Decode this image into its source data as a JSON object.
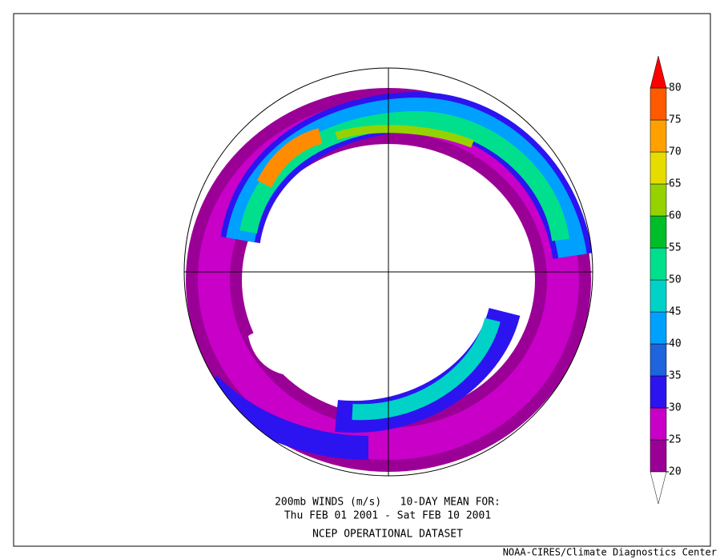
{
  "caption": {
    "line1": "200mb WINDS (m/s)   10-DAY MEAN FOR:",
    "line2": "Thu FEB 01 2001 - Sat FEB 10 2001",
    "line3": "NCEP OPERATIONAL DATASET"
  },
  "credit": "NOAA-CIRES/Climate Diagnostics Center",
  "colorbar": {
    "levels": [
      20,
      25,
      30,
      35,
      40,
      45,
      50,
      55,
      60,
      65,
      70,
      75,
      80
    ],
    "colors": [
      "#9b0096",
      "#c800c8",
      "#2c14f0",
      "#1e64dc",
      "#00a0ff",
      "#00d2c8",
      "#00e08c",
      "#00be28",
      "#96d200",
      "#e6dc00",
      "#ffa000",
      "#ff5a00"
    ],
    "over_color": "#ff0000",
    "under_color": "#ffffff"
  }
}
